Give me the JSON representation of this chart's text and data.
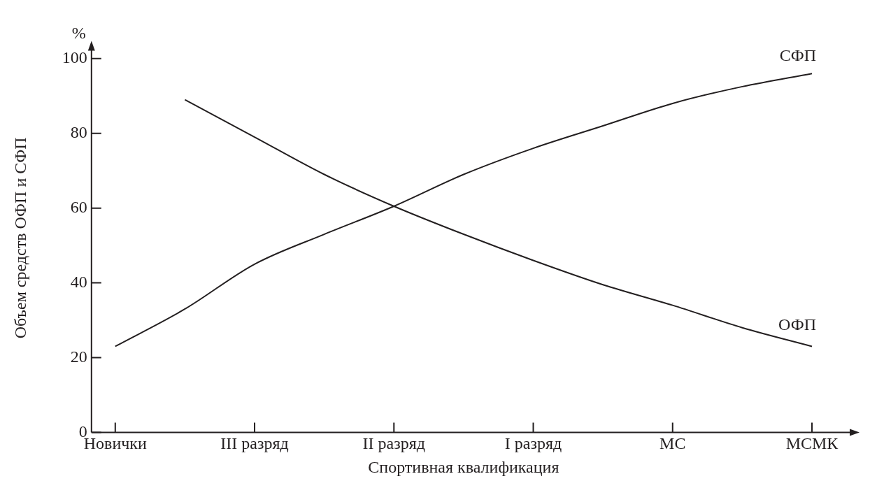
{
  "chart_data": {
    "type": "line",
    "xlabel": "Спортивная квалификация",
    "ylabel": "Объем средств ОФП и СФП",
    "annotations": [
      "%"
    ],
    "categories": [
      "Новички",
      null,
      "III разряд",
      null,
      "II разряд",
      null,
      "I разряд",
      null,
      "МС",
      null,
      "МСМК"
    ],
    "ylim": [
      0,
      104
    ],
    "yticks": [
      0,
      20,
      40,
      60,
      80,
      100
    ],
    "legend": false,
    "marker": "none",
    "line_style": "solid",
    "series": [
      {
        "name": "СФП",
        "color": "#231f20",
        "values": [
          23,
          33,
          45,
          53,
          60.5,
          69,
          76,
          82,
          88,
          92.5,
          96
        ]
      },
      {
        "name": "ОФП",
        "color": "#231f20",
        "values": [
          null,
          89,
          79,
          69,
          60.5,
          53,
          46,
          39.5,
          34,
          28,
          23
        ]
      }
    ]
  }
}
